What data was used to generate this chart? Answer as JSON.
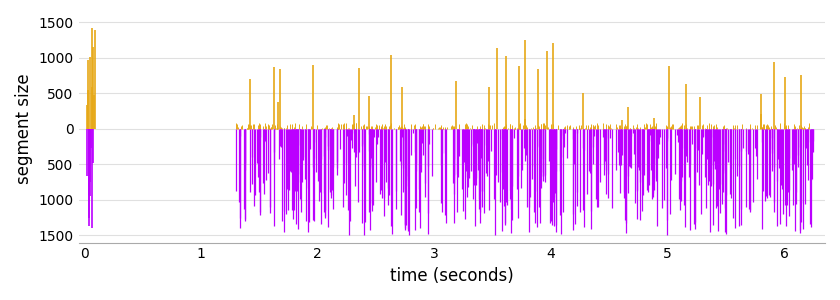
{
  "title": "",
  "xlabel": "time (seconds)",
  "ylabel": "segment size",
  "xlim": [
    -0.05,
    6.35
  ],
  "ylim": [
    -1600,
    1600
  ],
  "yticks": [
    -1500,
    -1000,
    -500,
    0,
    500,
    1000,
    1500
  ],
  "ytick_labels": [
    "1500",
    "1000",
    "500",
    "0",
    "500",
    "1000",
    "1500"
  ],
  "xticks": [
    0,
    1,
    2,
    3,
    4,
    5,
    6
  ],
  "color_up": "#E6A817",
  "color_down": "#BB00FF",
  "bg_color": "#ffffff",
  "grid_color": "#e0e0e0",
  "figsize": [
    8.4,
    3.0
  ],
  "dpi": 100
}
